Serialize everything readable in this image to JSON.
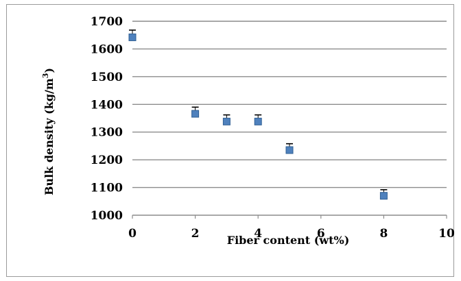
{
  "chart_data": {
    "type": "scatter",
    "xlabel": "Fiber content (wt%)",
    "ylabel_text": "Bulk density  (kg/m",
    "ylabel_sup": "3",
    "ylabel_close": ")",
    "xlim": [
      0,
      10
    ],
    "ylim": [
      1000,
      1700
    ],
    "x_ticks": [
      "0",
      "2",
      "4",
      "6",
      "8",
      "10"
    ],
    "y_ticks": [
      "1000",
      "1100",
      "1200",
      "1300",
      "1400",
      "1500",
      "1600",
      "1700"
    ],
    "grid": "horizontal",
    "marker_color": "#4f81bd",
    "series": [
      {
        "x": [
          0,
          2,
          3,
          4,
          5,
          8
        ],
        "y": [
          1642,
          1366,
          1338,
          1338,
          1235,
          1070
        ],
        "error_upper": [
          1668,
          1390,
          1362,
          1362,
          1258,
          1092
        ]
      }
    ]
  }
}
